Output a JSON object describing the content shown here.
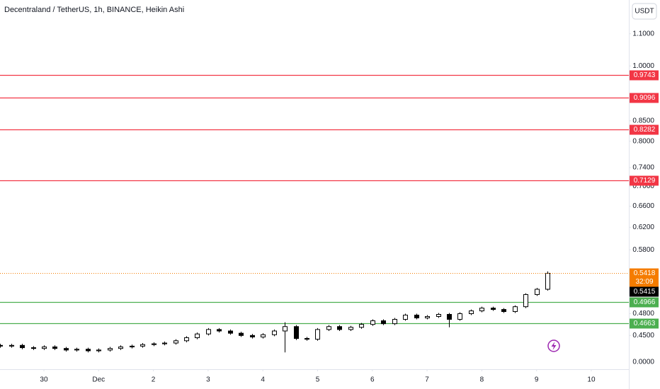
{
  "chart_data": {
    "type": "candlestick",
    "title": "Decentraland / TetherUS, 1h, BINANCE, Heikin Ashi",
    "currency": "USDT",
    "log_scale": true,
    "xlim": [
      -0.802,
      10.686
    ],
    "xticks": [
      {
        "value": 0,
        "label": "30"
      },
      {
        "value": 1,
        "label": "Dec"
      },
      2,
      3,
      4,
      5,
      6,
      7,
      8,
      9,
      10
    ],
    "ylim": [
      0.4072,
      1.2157
    ],
    "yticks": [
      {
        "value": 1.1,
        "label": "1.1000"
      },
      {
        "value": 1.0,
        "label": "1.0000"
      },
      {
        "value": 0.85,
        "label": "0.8500"
      },
      {
        "value": 0.8,
        "label": "0.8000"
      },
      {
        "value": 0.74,
        "label": "0.7400"
      },
      {
        "value": 0.7,
        "label": "0.7000"
      },
      {
        "value": 0.66,
        "label": "0.6600"
      },
      {
        "value": 0.62,
        "label": "0.6200"
      },
      {
        "value": 0.58,
        "label": "0.5800"
      },
      {
        "value": 0.48,
        "label": "0.4800"
      },
      {
        "value": 0.45,
        "label": "0.4500"
      }
    ],
    "bottom_label": "0.0000",
    "levels": [
      {
        "value": 0.9743,
        "color": "#f23645"
      },
      {
        "value": 0.9096,
        "color": "#f23645"
      },
      {
        "value": 0.8282,
        "color": "#f23645"
      },
      {
        "value": 0.7129,
        "color": "#f23645"
      },
      {
        "value": 0.4966,
        "color": "#4caf50"
      },
      {
        "value": 0.4663,
        "color": "#4caf50"
      }
    ],
    "current_price": 0.5418,
    "current_color": "#f57c00",
    "countdown": "32:09",
    "last_close": 0.5415,
    "x": [
      -0.8,
      -0.6,
      -0.4,
      -0.2,
      0,
      0.2,
      0.4,
      0.6,
      0.8,
      1,
      1.2,
      1.4,
      1.6,
      1.8,
      2,
      2.2,
      2.4,
      2.6,
      2.8,
      3,
      3.2,
      3.4,
      3.6,
      3.8,
      4,
      4.2,
      4.4,
      4.6,
      4.8,
      5,
      5.2,
      5.4,
      5.6,
      5.8,
      6,
      6.2,
      6.4,
      6.6,
      6.8,
      7,
      7.2,
      7.4,
      7.6,
      7.8,
      8,
      8.2,
      8.4,
      8.6,
      8.8,
      9,
      9.2
    ],
    "open": [
      0.437,
      0.436,
      0.437,
      0.434,
      0.433,
      0.435,
      0.433,
      0.431,
      0.432,
      0.43,
      0.431,
      0.433,
      0.435,
      0.436,
      0.438,
      0.439,
      0.44,
      0.443,
      0.447,
      0.452,
      0.458,
      0.456,
      0.453,
      0.45,
      0.448,
      0.451,
      0.456,
      0.462,
      0.446,
      0.445,
      0.458,
      0.462,
      0.458,
      0.461,
      0.465,
      0.47,
      0.466,
      0.472,
      0.478,
      0.474,
      0.476,
      0.479,
      0.472,
      0.48,
      0.484,
      0.488,
      0.486,
      0.483,
      0.49,
      0.508,
      0.516
    ],
    "high": [
      0.439,
      0.439,
      0.439,
      0.436,
      0.437,
      0.437,
      0.435,
      0.434,
      0.434,
      0.433,
      0.435,
      0.437,
      0.438,
      0.44,
      0.441,
      0.442,
      0.445,
      0.449,
      0.454,
      0.46,
      0.46,
      0.458,
      0.455,
      0.452,
      0.453,
      0.458,
      0.468,
      0.464,
      0.448,
      0.46,
      0.464,
      0.464,
      0.463,
      0.467,
      0.472,
      0.472,
      0.474,
      0.48,
      0.48,
      0.478,
      0.481,
      0.481,
      0.482,
      0.486,
      0.49,
      0.49,
      0.488,
      0.492,
      0.51,
      0.518,
      0.544
    ],
    "low": [
      0.434,
      0.434,
      0.432,
      0.431,
      0.431,
      0.431,
      0.429,
      0.429,
      0.428,
      0.428,
      0.429,
      0.431,
      0.433,
      0.434,
      0.436,
      0.437,
      0.438,
      0.441,
      0.445,
      0.45,
      0.454,
      0.451,
      0.448,
      0.446,
      0.446,
      0.449,
      0.428,
      0.444,
      0.443,
      0.443,
      0.456,
      0.456,
      0.456,
      0.459,
      0.463,
      0.464,
      0.464,
      0.47,
      0.472,
      0.472,
      0.474,
      0.461,
      0.47,
      0.478,
      0.482,
      0.484,
      0.481,
      0.481,
      0.488,
      0.506,
      0.514
    ],
    "close": [
      0.436,
      0.437,
      0.434,
      0.433,
      0.435,
      0.433,
      0.431,
      0.432,
      0.43,
      0.431,
      0.433,
      0.435,
      0.436,
      0.438,
      0.439,
      0.44,
      0.443,
      0.447,
      0.452,
      0.458,
      0.456,
      0.453,
      0.45,
      0.448,
      0.451,
      0.456,
      0.462,
      0.446,
      0.445,
      0.458,
      0.462,
      0.458,
      0.461,
      0.465,
      0.47,
      0.466,
      0.472,
      0.478,
      0.474,
      0.476,
      0.479,
      0.472,
      0.48,
      0.484,
      0.488,
      0.486,
      0.483,
      0.49,
      0.508,
      0.516,
      0.541
    ]
  }
}
